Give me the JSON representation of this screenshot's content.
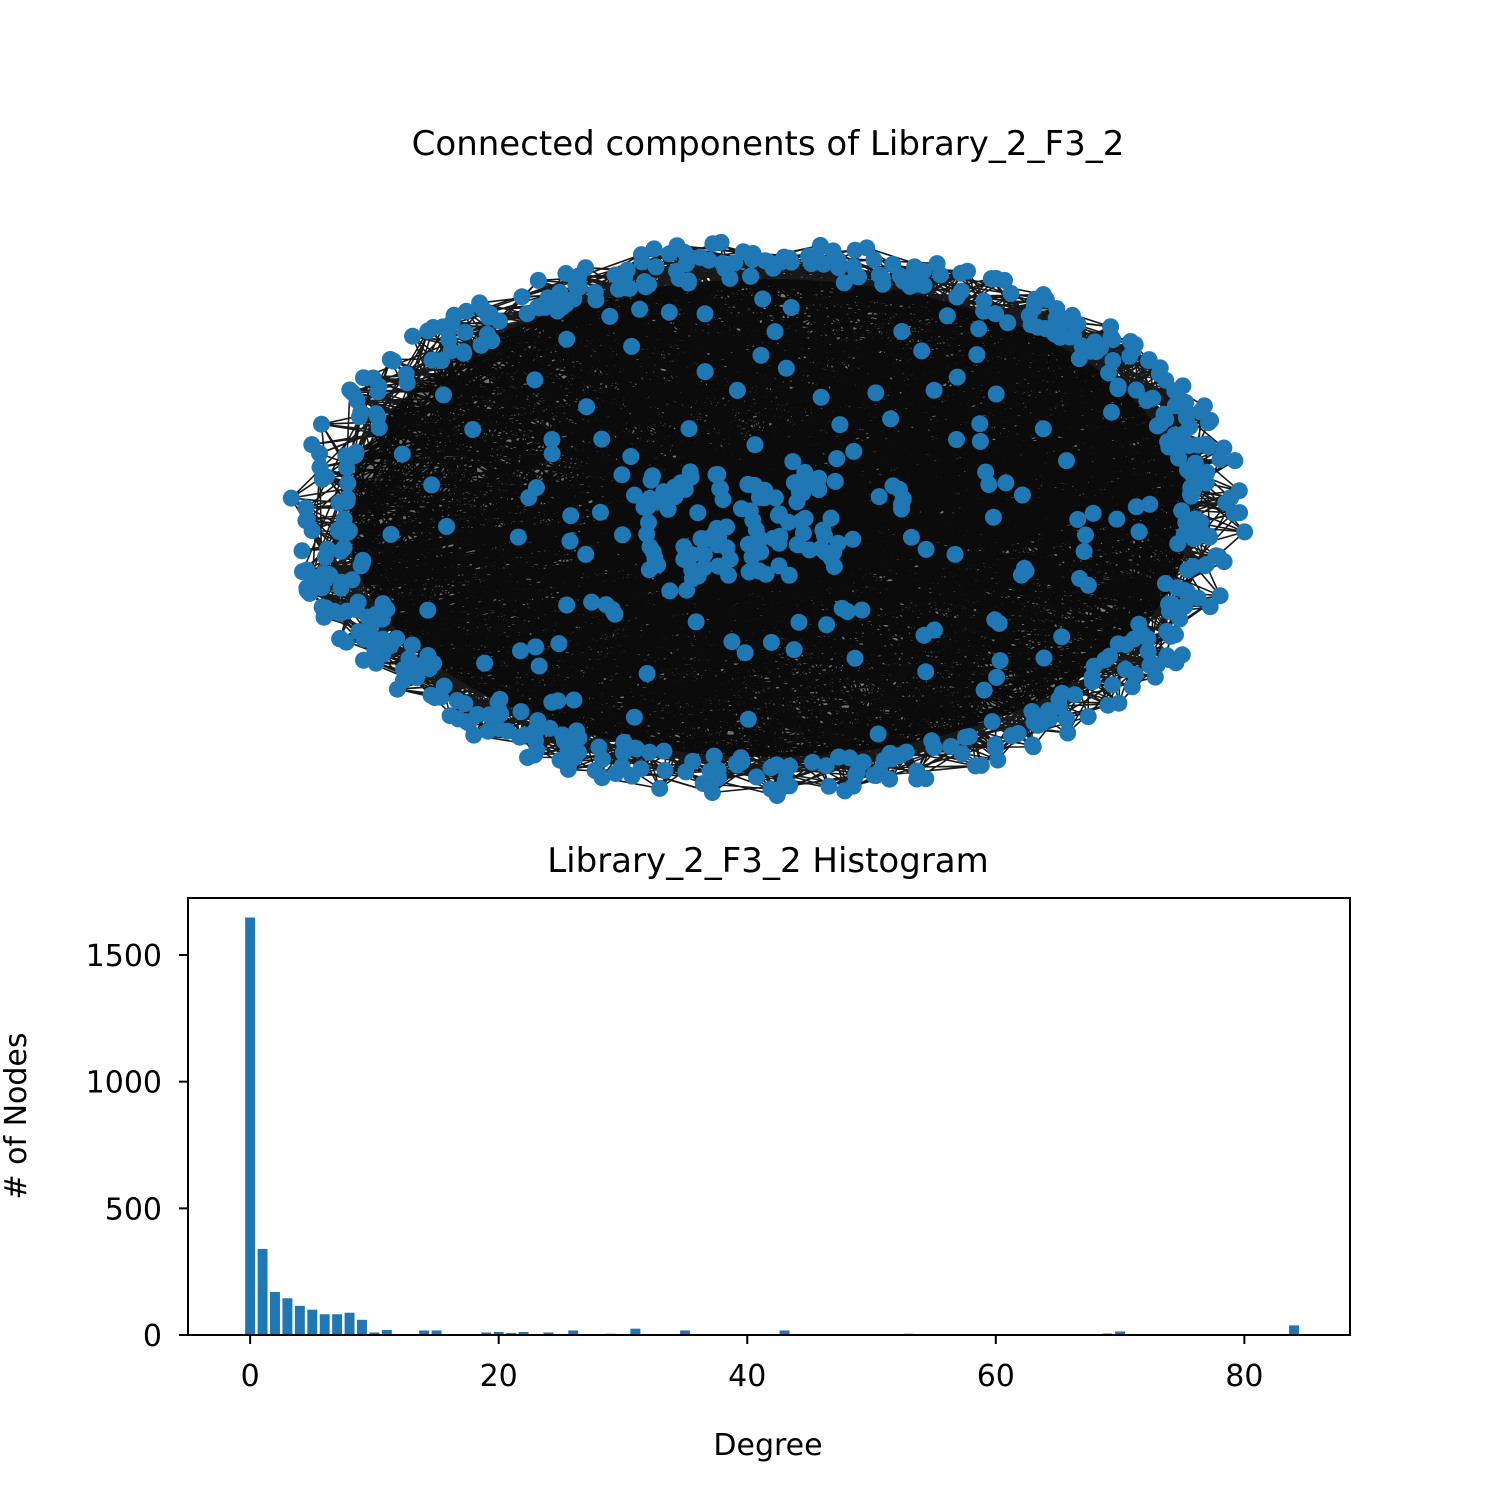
{
  "network_panel": {
    "title": "Connected components of Library_2_F3_2",
    "node_color": "#1f77b4",
    "edge_color": "#000000"
  },
  "chart_data": {
    "type": "bar",
    "title": "Library_2_F3_2 Histogram",
    "xlabel": "Degree",
    "ylabel": "# of Nodes",
    "xlim": [
      -5,
      88.5
    ],
    "ylim": [
      0,
      1725
    ],
    "xticks": [
      0,
      20,
      40,
      60,
      80
    ],
    "yticks": [
      0,
      500,
      1000,
      1500
    ],
    "bar_color": "#1f77b4",
    "bar_width": 0.8,
    "x": [
      0,
      1,
      2,
      3,
      4,
      5,
      6,
      7,
      8,
      9,
      10,
      11,
      14,
      15,
      19,
      20,
      21,
      22,
      24,
      26,
      29,
      31,
      35,
      43,
      53,
      69,
      70,
      84
    ],
    "values": [
      1648,
      340,
      170,
      145,
      115,
      100,
      82,
      82,
      88,
      60,
      10,
      20,
      18,
      18,
      10,
      12,
      8,
      12,
      10,
      18,
      5,
      25,
      18,
      18,
      5,
      6,
      14,
      38
    ]
  }
}
